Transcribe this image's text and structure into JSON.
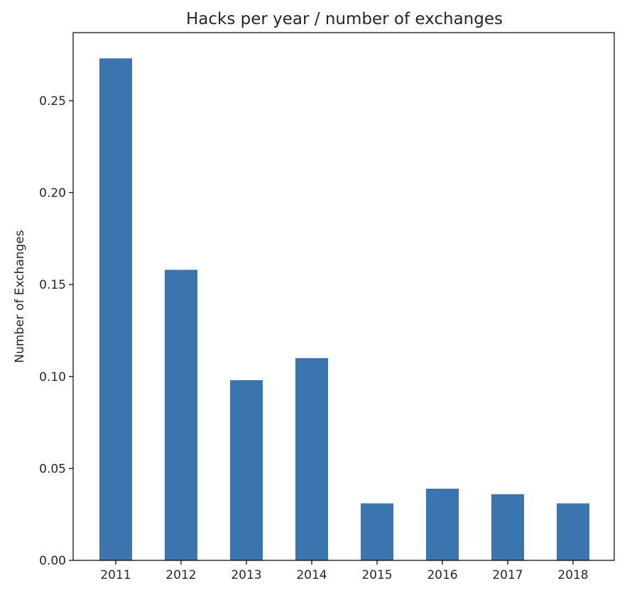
{
  "chart_data": {
    "type": "bar",
    "title": "Hacks per year / number of exchanges",
    "xlabel": "",
    "ylabel": "Number of Exchanges",
    "categories": [
      "2011",
      "2012",
      "2013",
      "2014",
      "2015",
      "2016",
      "2017",
      "2018"
    ],
    "values": [
      0.273,
      0.158,
      0.098,
      0.11,
      0.031,
      0.039,
      0.036,
      0.031
    ],
    "ylim": [
      0,
      0.287
    ],
    "yticks": [
      0.0,
      0.05,
      0.1,
      0.15,
      0.2,
      0.25
    ],
    "ytick_labels": [
      "0.00",
      "0.05",
      "0.10",
      "0.15",
      "0.20",
      "0.25"
    ],
    "grid": false,
    "legend": "none",
    "bar_color": "#3a75af"
  }
}
